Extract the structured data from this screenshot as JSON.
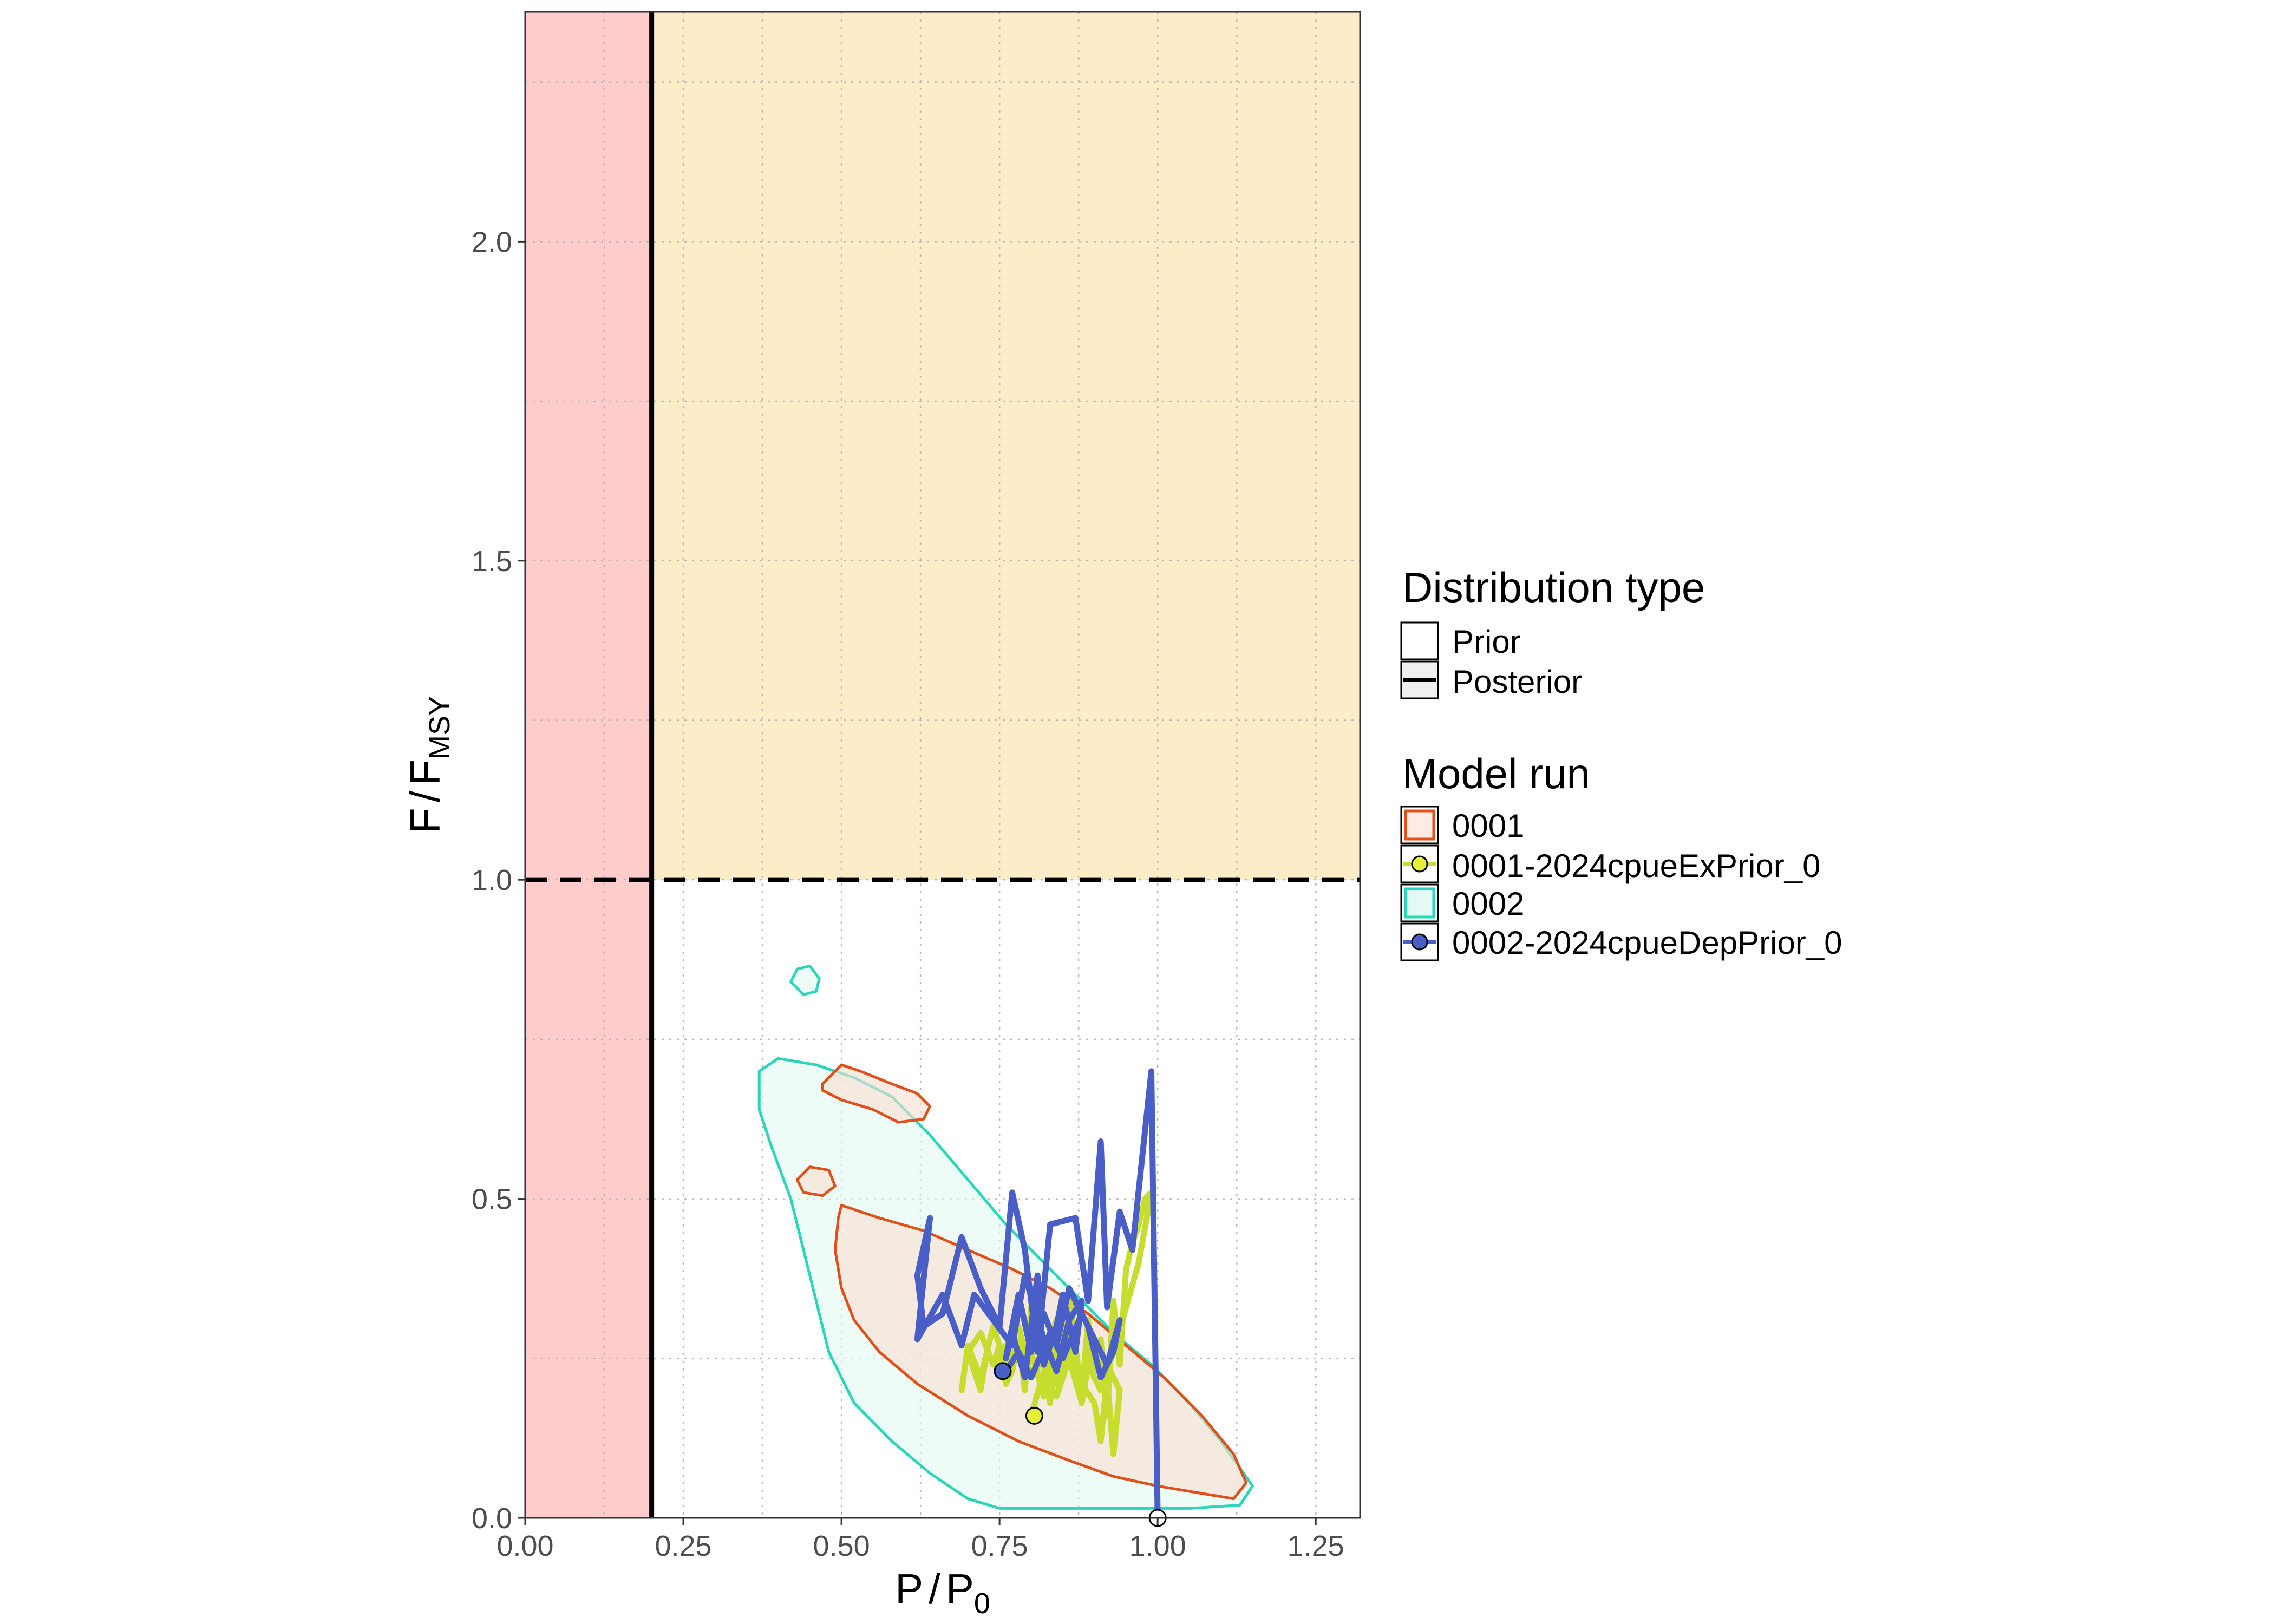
{
  "chart_data": {
    "type": "line",
    "x_axis": {
      "label_main": "P",
      "label_sep": "/",
      "label_den": "P",
      "label_sub": "0",
      "range": [
        0.0,
        1.32
      ],
      "ticks": [
        0.0,
        0.25,
        0.5,
        0.75,
        1.0,
        1.25
      ],
      "tick_labels": [
        "0.00",
        "0.25",
        "0.50",
        "0.75",
        "1.00",
        "1.25"
      ]
    },
    "y_axis": {
      "label_main": "F",
      "label_sep": "/",
      "label_den": "F",
      "label_sub": "MSY",
      "range": [
        0.0,
        2.36
      ],
      "ticks": [
        0.0,
        0.5,
        1.0,
        1.5,
        2.0
      ],
      "tick_labels": [
        "0.0",
        "0.5",
        "1.0",
        "1.5",
        "2.0"
      ]
    },
    "grid": true,
    "background_regions": [
      {
        "name": "limit",
        "x": [
          0.0,
          0.2
        ],
        "y": [
          0.0,
          2.36
        ],
        "color": "#ffcccc"
      },
      {
        "name": "overfishing",
        "x": [
          0.2,
          1.32
        ],
        "y": [
          1.0,
          2.36
        ],
        "color": "#fdecc8"
      }
    ],
    "reference_lines": [
      {
        "axis": "x",
        "value": 0.2,
        "style": "solid"
      },
      {
        "axis": "y",
        "value": 1.0,
        "style": "dashed"
      }
    ],
    "contours": [
      {
        "model_run": "0002",
        "stroke": "#2ad6b8",
        "fill": "#e3faf4",
        "polygons": [
          [
            [
              0.37,
              0.7
            ],
            [
              0.4,
              0.72
            ],
            [
              0.46,
              0.71
            ],
            [
              0.52,
              0.69
            ],
            [
              0.58,
              0.66
            ],
            [
              0.64,
              0.6
            ],
            [
              0.7,
              0.53
            ],
            [
              0.76,
              0.46
            ],
            [
              0.82,
              0.4
            ],
            [
              0.88,
              0.34
            ],
            [
              0.93,
              0.29
            ],
            [
              0.99,
              0.24
            ],
            [
              1.05,
              0.18
            ],
            [
              1.1,
              0.12
            ],
            [
              1.15,
              0.05
            ],
            [
              1.13,
              0.02
            ],
            [
              1.05,
              0.015
            ],
            [
              0.95,
              0.015
            ],
            [
              0.85,
              0.015
            ],
            [
              0.75,
              0.015
            ],
            [
              0.7,
              0.03
            ],
            [
              0.64,
              0.07
            ],
            [
              0.58,
              0.12
            ],
            [
              0.52,
              0.18
            ],
            [
              0.48,
              0.26
            ],
            [
              0.46,
              0.34
            ],
            [
              0.44,
              0.42
            ],
            [
              0.42,
              0.5
            ],
            [
              0.39,
              0.58
            ],
            [
              0.37,
              0.64
            ]
          ],
          [
            [
              0.42,
              0.84
            ],
            [
              0.44,
              0.82
            ],
            [
              0.46,
              0.825
            ],
            [
              0.465,
              0.845
            ],
            [
              0.45,
              0.865
            ],
            [
              0.43,
              0.86
            ]
          ]
        ]
      },
      {
        "model_run": "0001",
        "stroke": "#e0501a",
        "fill": "#f8ddd0",
        "polygons": [
          [
            [
              0.5,
              0.49
            ],
            [
              0.56,
              0.47
            ],
            [
              0.63,
              0.45
            ],
            [
              0.7,
              0.42
            ],
            [
              0.77,
              0.39
            ],
            [
              0.83,
              0.36
            ],
            [
              0.89,
              0.32
            ],
            [
              0.95,
              0.27
            ],
            [
              1.01,
              0.22
            ],
            [
              1.07,
              0.16
            ],
            [
              1.12,
              0.1
            ],
            [
              1.14,
              0.055
            ],
            [
              1.12,
              0.03
            ],
            [
              1.06,
              0.04
            ],
            [
              1.0,
              0.05
            ],
            [
              0.93,
              0.065
            ],
            [
              0.86,
              0.09
            ],
            [
              0.78,
              0.12
            ],
            [
              0.7,
              0.16
            ],
            [
              0.62,
              0.21
            ],
            [
              0.56,
              0.26
            ],
            [
              0.52,
              0.31
            ],
            [
              0.5,
              0.36
            ],
            [
              0.49,
              0.42
            ],
            [
              0.495,
              0.47
            ]
          ],
          [
            [
              0.47,
              0.68
            ],
            [
              0.5,
              0.71
            ],
            [
              0.53,
              0.7
            ],
            [
              0.58,
              0.68
            ],
            [
              0.62,
              0.665
            ],
            [
              0.64,
              0.645
            ],
            [
              0.63,
              0.625
            ],
            [
              0.59,
              0.62
            ],
            [
              0.55,
              0.64
            ],
            [
              0.5,
              0.655
            ],
            [
              0.47,
              0.67
            ]
          ],
          [
            [
              0.43,
              0.53
            ],
            [
              0.45,
              0.55
            ],
            [
              0.48,
              0.545
            ],
            [
              0.49,
              0.52
            ],
            [
              0.47,
              0.505
            ],
            [
              0.44,
              0.51
            ]
          ]
        ]
      }
    ],
    "series": [
      {
        "name": "0001-2024cpueExPrior_0",
        "color": "#c6dd30",
        "marker_fill": "#e6ef3a",
        "x": [
          0.69,
          0.7,
          0.72,
          0.74,
          0.76,
          0.78,
          0.79,
          0.8,
          0.82,
          0.83,
          0.84,
          0.85,
          0.86,
          0.87,
          0.88,
          0.89,
          0.9,
          0.91,
          0.92,
          0.93,
          0.94,
          0.95,
          0.96,
          0.97,
          0.98,
          0.99,
          0.97,
          0.95,
          0.93,
          0.91,
          0.89,
          0.88,
          0.86,
          0.85,
          0.84,
          0.83,
          0.82,
          0.8,
          0.79,
          0.78,
          0.77,
          0.76,
          0.75,
          0.74,
          0.73,
          0.72,
          0.71,
          0.7,
          0.72,
          0.74,
          0.76,
          0.78,
          0.8,
          0.82,
          0.84,
          0.86,
          0.88,
          0.9,
          0.91,
          0.92,
          0.93,
          0.94,
          0.92,
          0.9,
          0.88,
          0.86,
          0.84,
          0.82,
          0.8
        ],
        "y": [
          0.2,
          0.27,
          0.22,
          0.3,
          0.24,
          0.28,
          0.2,
          0.33,
          0.25,
          0.18,
          0.3,
          0.22,
          0.35,
          0.27,
          0.19,
          0.31,
          0.23,
          0.28,
          0.16,
          0.34,
          0.24,
          0.39,
          0.43,
          0.46,
          0.5,
          0.51,
          0.4,
          0.33,
          0.26,
          0.2,
          0.24,
          0.18,
          0.25,
          0.29,
          0.21,
          0.27,
          0.19,
          0.26,
          0.22,
          0.28,
          0.23,
          0.21,
          0.27,
          0.24,
          0.26,
          0.2,
          0.23,
          0.26,
          0.29,
          0.24,
          0.27,
          0.3,
          0.22,
          0.25,
          0.31,
          0.27,
          0.21,
          0.18,
          0.12,
          0.22,
          0.1,
          0.2,
          0.24,
          0.28,
          0.21,
          0.25,
          0.19,
          0.23,
          0.16
        ]
      },
      {
        "name": "0002-2024cpueDepPrior_0",
        "color": "#4a5ec8",
        "marker_fill": "#4a5ec8",
        "x": [
          1.0,
          0.99,
          0.96,
          0.94,
          0.92,
          0.91,
          0.89,
          0.87,
          0.83,
          0.81,
          0.79,
          0.77,
          0.75,
          0.72,
          0.69,
          0.66,
          0.63,
          0.62,
          0.64,
          0.62,
          0.66,
          0.69,
          0.71,
          0.74,
          0.77,
          0.79,
          0.82,
          0.84,
          0.86,
          0.88,
          0.87,
          0.85,
          0.84,
          0.82,
          0.81,
          0.79,
          0.77,
          0.76,
          0.78,
          0.8,
          0.82,
          0.84,
          0.86,
          0.89,
          0.91,
          0.93,
          0.94,
          0.92,
          0.9,
          0.88,
          0.85,
          0.83,
          0.8,
          0.78,
          0.76
        ],
        "y": [
          0.0,
          0.7,
          0.42,
          0.48,
          0.33,
          0.59,
          0.34,
          0.47,
          0.46,
          0.26,
          0.42,
          0.51,
          0.3,
          0.36,
          0.44,
          0.32,
          0.3,
          0.38,
          0.47,
          0.28,
          0.35,
          0.27,
          0.35,
          0.31,
          0.27,
          0.38,
          0.28,
          0.23,
          0.31,
          0.34,
          0.26,
          0.35,
          0.3,
          0.24,
          0.38,
          0.22,
          0.29,
          0.25,
          0.35,
          0.26,
          0.32,
          0.27,
          0.36,
          0.3,
          0.22,
          0.26,
          0.31,
          0.24,
          0.28,
          0.32,
          0.25,
          0.29,
          0.22,
          0.26,
          0.23
        ]
      }
    ],
    "markers": [
      {
        "series": "0001-2024cpueExPrior_0",
        "x": 0.805,
        "y": 0.16,
        "fill": "#e6ef3a"
      },
      {
        "series": "0002-2024cpueDepPrior_0",
        "x": 0.755,
        "y": 0.23,
        "fill": "#4a5ec8"
      },
      {
        "series": "start",
        "x": 1.0,
        "y": 0.0,
        "fill": "#ffffff"
      }
    ]
  },
  "legend": {
    "distribution_title": "Distribution type",
    "distribution_items": [
      {
        "label": "Prior",
        "style": "open"
      },
      {
        "label": "Posterior",
        "style": "line"
      }
    ],
    "model_title": "Model run",
    "model_items": [
      {
        "label": "0001",
        "kind": "contour",
        "stroke": "#e0501a",
        "fill": "#fdebe4"
      },
      {
        "label": "0001-2024cpueExPrior_0",
        "kind": "line",
        "color": "#c6dd30",
        "fill": "#e6ef3a"
      },
      {
        "label": "0002",
        "kind": "contour",
        "stroke": "#2ad6b8",
        "fill": "#e3faf4"
      },
      {
        "label": "0002-2024cpueDepPrior_0",
        "kind": "line",
        "color": "#4a5ec8",
        "fill": "#4a5ec8"
      }
    ]
  }
}
